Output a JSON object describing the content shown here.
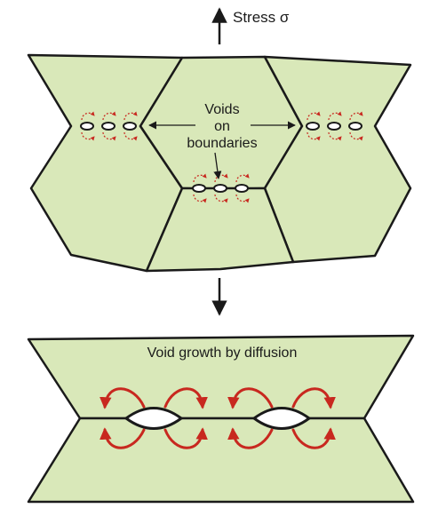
{
  "labels": {
    "stress": "Stress σ",
    "voids_line1": "Voids",
    "voids_line2": "on",
    "voids_line3": "boundaries",
    "growth": "Void growth by diffusion"
  },
  "colors": {
    "grain_fill": "#d9e8b9",
    "boundary": "#1a1a1a",
    "diffusion_arrow": "#c8281f",
    "void_fill": "#ffffff",
    "arrow": "#1a1a1a"
  }
}
